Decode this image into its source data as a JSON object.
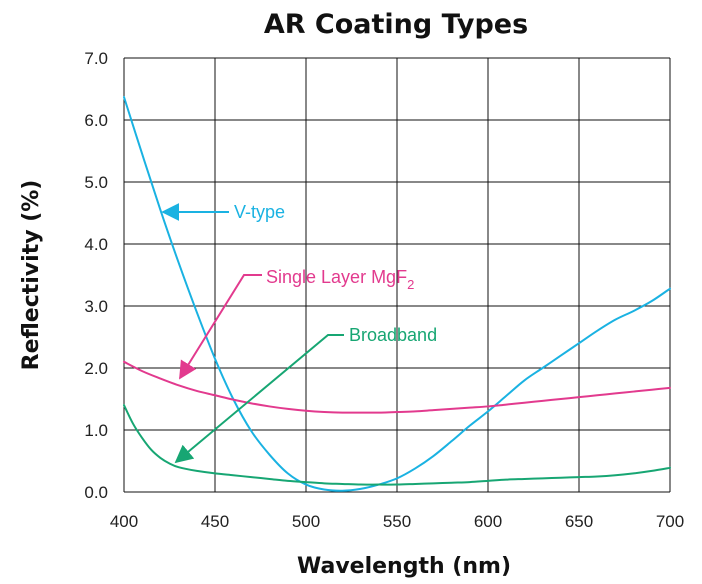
{
  "chart_data": {
    "type": "line",
    "title": "AR Coating Types",
    "xlabel": "Wavelength (nm)",
    "ylabel": "Reflectivity (%)",
    "xlim": [
      400,
      700
    ],
    "ylim": [
      0,
      7
    ],
    "grid": true,
    "x_ticks": [
      400,
      450,
      500,
      550,
      600,
      650,
      700
    ],
    "x_tick_labels": [
      "400",
      "450",
      "500",
      "550",
      "600",
      "650",
      "700"
    ],
    "y_ticks": [
      0,
      1,
      2,
      3,
      4,
      5,
      6,
      7
    ],
    "y_tick_labels": [
      "0.0",
      "1.0",
      "2.0",
      "3.0",
      "4.0",
      "5.0",
      "6.0",
      "7.0"
    ],
    "series": [
      {
        "name": "V-type",
        "color": "#1ab2e2",
        "x": [
          400,
          410,
          420,
          430,
          440,
          450,
          460,
          470,
          480,
          490,
          500,
          510,
          520,
          530,
          540,
          550,
          560,
          570,
          580,
          590,
          600,
          610,
          620,
          630,
          640,
          650,
          660,
          670,
          680,
          690,
          700
        ],
        "y": [
          6.37,
          5.45,
          4.55,
          3.7,
          2.9,
          2.15,
          1.5,
          0.98,
          0.6,
          0.3,
          0.12,
          0.04,
          0.02,
          0.05,
          0.12,
          0.22,
          0.38,
          0.58,
          0.82,
          1.07,
          1.3,
          1.55,
          1.8,
          2.0,
          2.2,
          2.4,
          2.6,
          2.78,
          2.92,
          3.08,
          3.28
        ]
      },
      {
        "name": "Single Layer MgF2",
        "color": "#e23a8e",
        "x": [
          400,
          410,
          420,
          430,
          440,
          450,
          460,
          470,
          480,
          490,
          500,
          510,
          520,
          530,
          540,
          550,
          560,
          570,
          580,
          590,
          600,
          610,
          620,
          630,
          640,
          650,
          660,
          670,
          680,
          690,
          700
        ],
        "y": [
          2.1,
          1.95,
          1.83,
          1.72,
          1.63,
          1.56,
          1.49,
          1.43,
          1.38,
          1.34,
          1.31,
          1.29,
          1.28,
          1.28,
          1.28,
          1.29,
          1.3,
          1.32,
          1.34,
          1.36,
          1.38,
          1.41,
          1.44,
          1.47,
          1.5,
          1.53,
          1.56,
          1.59,
          1.62,
          1.65,
          1.68
        ]
      },
      {
        "name": "Broadband",
        "color": "#17a673",
        "x": [
          400,
          405,
          410,
          415,
          420,
          425,
          430,
          440,
          450,
          460,
          470,
          480,
          490,
          500,
          510,
          520,
          530,
          540,
          550,
          560,
          570,
          580,
          590,
          600,
          610,
          620,
          630,
          640,
          650,
          660,
          670,
          680,
          690,
          700
        ],
        "y": [
          1.4,
          1.1,
          0.87,
          0.68,
          0.55,
          0.46,
          0.4,
          0.34,
          0.3,
          0.27,
          0.24,
          0.21,
          0.18,
          0.16,
          0.14,
          0.13,
          0.12,
          0.12,
          0.12,
          0.13,
          0.14,
          0.15,
          0.16,
          0.18,
          0.2,
          0.21,
          0.22,
          0.23,
          0.24,
          0.25,
          0.27,
          0.3,
          0.34,
          0.39
        ]
      }
    ],
    "annotations": [
      {
        "label": "V-type",
        "color": "#1ab2e2"
      },
      {
        "label": "Single Layer MgF",
        "subscript": "2",
        "color": "#e23a8e"
      },
      {
        "label": "Broadband",
        "color": "#17a673"
      }
    ]
  }
}
